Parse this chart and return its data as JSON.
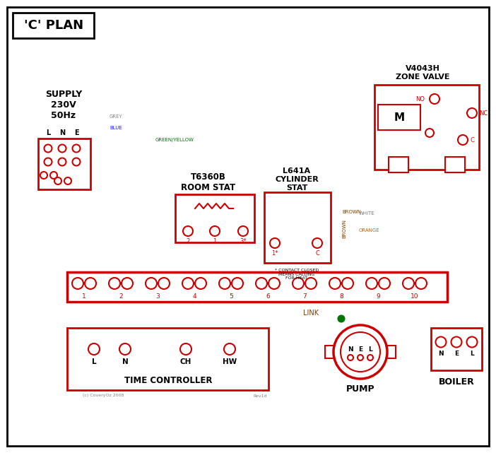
{
  "bg": "#ffffff",
  "black": "#000000",
  "red": "#cc0000",
  "blue": "#1a1aff",
  "green": "#007700",
  "grey": "#888888",
  "brown": "#7B3F00",
  "orange": "#cc6600",
  "dkblue": "#000088",
  "title": "'C' PLAN",
  "supply_label": "SUPPLY\n230V\n50Hz",
  "zone_valve_label": "V4043H\nZONE VALVE",
  "room_stat_label": "T6360B\nROOM STAT",
  "cyl_stat_label": "L641A\nCYLINDER\nSTAT",
  "time_ctrl_label": "TIME CONTROLLER",
  "pump_label": "PUMP",
  "boiler_label": "BOILER",
  "copyright": "(c) CoveryOz 2008",
  "rev": "Rev1d",
  "note": "* CONTACT CLOSED\nMEANS CALLING\nFOR HEAT",
  "link_label": "LINK"
}
